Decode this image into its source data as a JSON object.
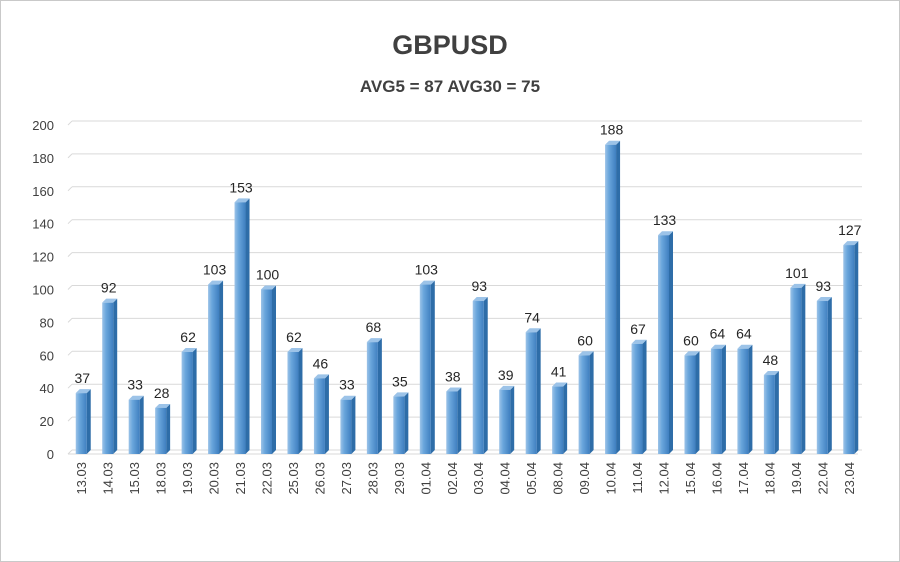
{
  "chart_data": {
    "type": "bar",
    "title": "GBPUSD",
    "subtitle": "AVG5 = 87 AVG30 = 75",
    "categories": [
      "13.03",
      "14.03",
      "15.03",
      "18.03",
      "19.03",
      "20.03",
      "21.03",
      "22.03",
      "25.03",
      "26.03",
      "27.03",
      "28.03",
      "29.03",
      "01.04",
      "02.04",
      "03.04",
      "04.04",
      "05.04",
      "08.04",
      "09.04",
      "10.04",
      "11.04",
      "12.04",
      "15.04",
      "16.04",
      "17.04",
      "18.04",
      "19.04",
      "22.04",
      "23.04"
    ],
    "values": [
      37,
      92,
      33,
      28,
      62,
      103,
      153,
      100,
      62,
      46,
      33,
      68,
      35,
      103,
      38,
      93,
      39,
      74,
      41,
      60,
      188,
      67,
      133,
      60,
      64,
      64,
      48,
      101,
      93,
      127
    ],
    "ylim": [
      0,
      200
    ],
    "yticks": [
      0,
      20,
      40,
      60,
      80,
      100,
      120,
      140,
      160,
      180,
      200
    ],
    "grid": true,
    "colors": {
      "bar": "#5b9bd5",
      "bar_light": "#9cc3e8",
      "bar_dark": "#2e6da8",
      "grid": "#d9d9d9"
    }
  }
}
